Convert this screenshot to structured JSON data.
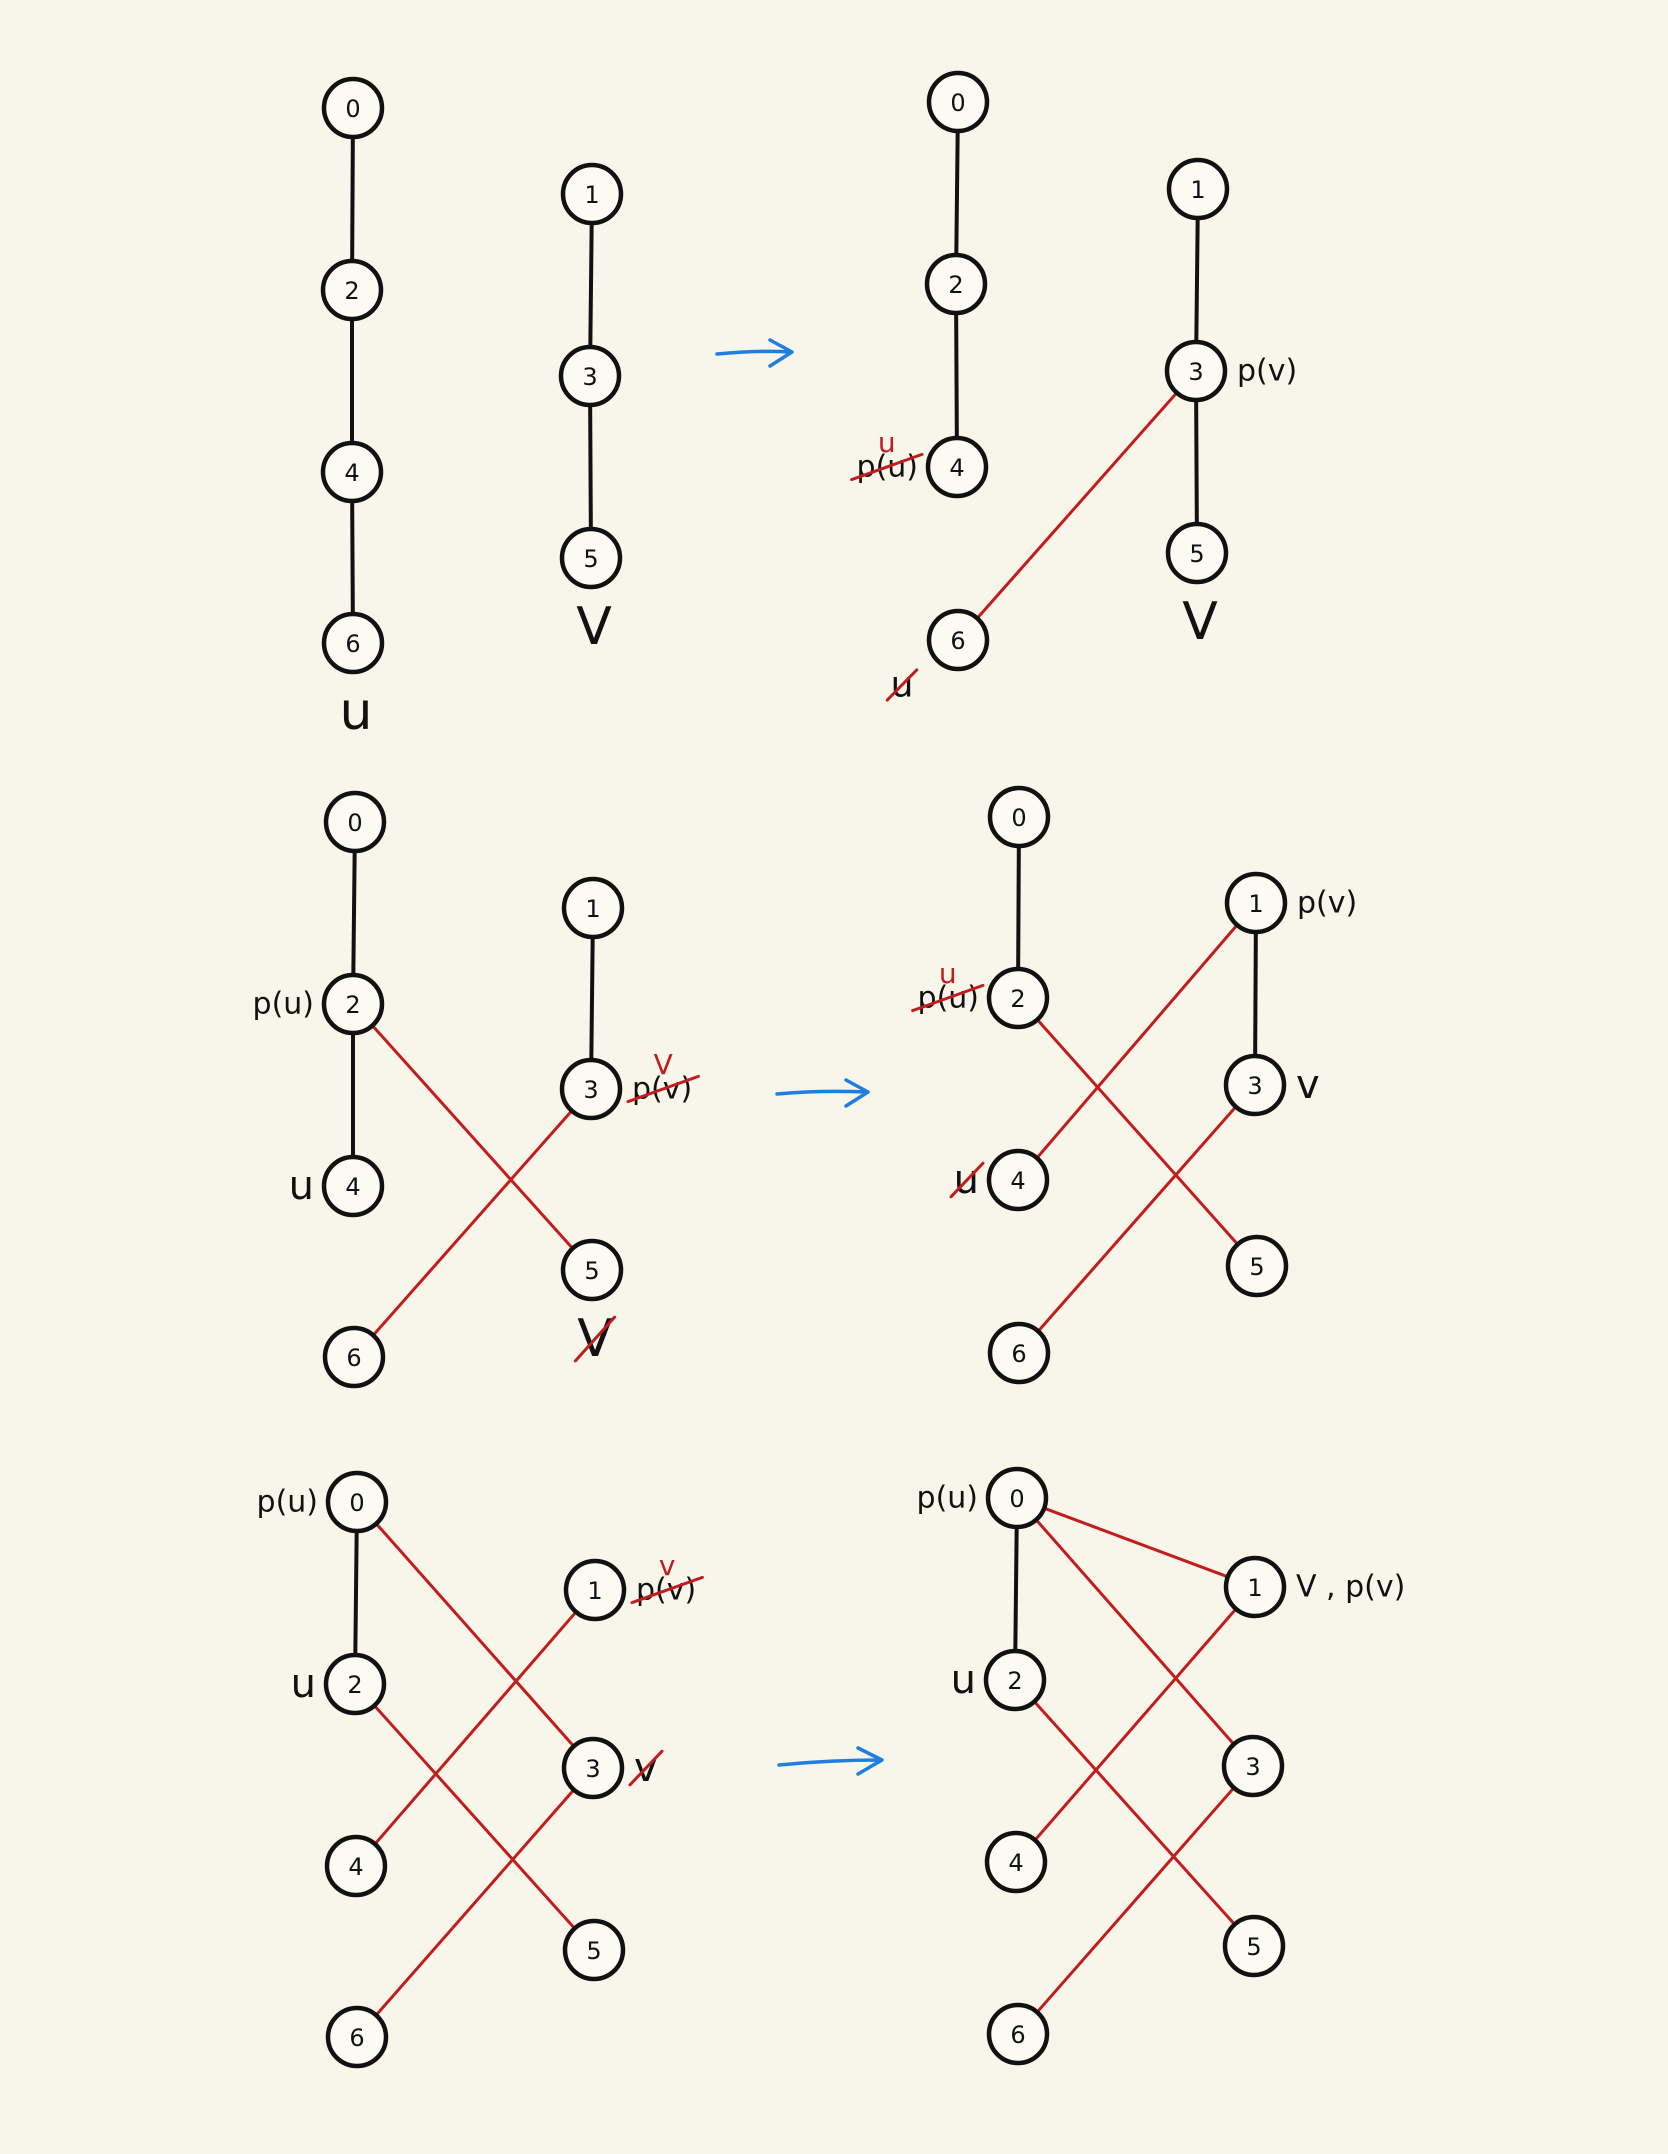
{
  "colors": {
    "background": "#f8f5ea",
    "tree_edge": "#111111",
    "link_edge": "#c21d1d",
    "transition_arrow": "#1f7fe0",
    "annotation_correction": "#c21d1d"
  },
  "node_labels": [
    "0",
    "1",
    "2",
    "3",
    "4",
    "5",
    "6"
  ],
  "panels": [
    {
      "id": "step1-before",
      "tree_edges": [
        [
          0,
          2
        ],
        [
          2,
          4
        ],
        [
          4,
          6
        ],
        [
          1,
          3
        ],
        [
          3,
          5
        ]
      ],
      "link_edges": [],
      "annotations": [
        {
          "text": "u",
          "anchor": 6,
          "side": "below",
          "struck": false
        },
        {
          "text": "V",
          "anchor": 5,
          "side": "below",
          "struck": false
        }
      ]
    },
    {
      "id": "step1-after",
      "tree_edges": [
        [
          0,
          2
        ],
        [
          2,
          4
        ],
        [
          1,
          3
        ],
        [
          3,
          5
        ]
      ],
      "link_edges": [
        [
          6,
          3
        ]
      ],
      "annotations": [
        {
          "text": "p(u)",
          "anchor": 4,
          "side": "left",
          "struck": true,
          "correction": "u"
        },
        {
          "text": "u",
          "anchor": 6,
          "side": "below-left",
          "struck": true
        },
        {
          "text": "p(v)",
          "anchor": 3,
          "side": "right",
          "struck": false
        },
        {
          "text": "V",
          "anchor": 5,
          "side": "below",
          "struck": false
        }
      ]
    },
    {
      "id": "step2-before",
      "tree_edges": [
        [
          0,
          2
        ],
        [
          2,
          4
        ],
        [
          1,
          3
        ]
      ],
      "link_edges": [
        [
          2,
          5
        ],
        [
          6,
          3
        ]
      ],
      "annotations": [
        {
          "text": "p(u)",
          "anchor": 2,
          "side": "left",
          "struck": false
        },
        {
          "text": "u",
          "anchor": 4,
          "side": "left",
          "struck": false
        },
        {
          "text": "p(v)",
          "anchor": 3,
          "side": "right",
          "struck": true,
          "correction": "V"
        },
        {
          "text": "V",
          "anchor": 5,
          "side": "below",
          "struck": true
        }
      ]
    },
    {
      "id": "step2-after",
      "tree_edges": [
        [
          0,
          2
        ],
        [
          1,
          3
        ]
      ],
      "link_edges": [
        [
          2,
          5
        ],
        [
          4,
          1
        ],
        [
          6,
          3
        ]
      ],
      "annotations": [
        {
          "text": "p(u)",
          "anchor": 2,
          "side": "left",
          "struck": true,
          "correction": "u"
        },
        {
          "text": "u",
          "anchor": 4,
          "side": "left",
          "struck": true
        },
        {
          "text": "p(v)",
          "anchor": 1,
          "side": "right",
          "struck": false
        },
        {
          "text": "v",
          "anchor": 3,
          "side": "right",
          "struck": false
        }
      ]
    },
    {
      "id": "step3-before",
      "tree_edges": [
        [
          0,
          2
        ]
      ],
      "link_edges": [
        [
          0,
          3
        ],
        [
          2,
          5
        ],
        [
          4,
          1
        ],
        [
          6,
          3
        ]
      ],
      "annotations": [
        {
          "text": "p(u)",
          "anchor": 0,
          "side": "left",
          "struck": false
        },
        {
          "text": "u",
          "anchor": 2,
          "side": "left",
          "struck": false
        },
        {
          "text": "p(v)",
          "anchor": 1,
          "side": "right",
          "struck": true,
          "correction": "v"
        },
        {
          "text": "v",
          "anchor": 3,
          "side": "right",
          "struck": true
        }
      ]
    },
    {
      "id": "step3-after",
      "tree_edges": [
        [
          0,
          2
        ]
      ],
      "link_edges": [
        [
          0,
          1
        ],
        [
          0,
          3
        ],
        [
          2,
          5
        ],
        [
          4,
          1
        ],
        [
          6,
          3
        ]
      ],
      "annotations": [
        {
          "text": "p(u)",
          "anchor": 0,
          "side": "left",
          "struck": false
        },
        {
          "text": "u",
          "anchor": 2,
          "side": "left",
          "struck": false
        },
        {
          "text": "V , p(v)",
          "anchor": 1,
          "side": "right",
          "struck": false
        }
      ]
    }
  ],
  "transitions": [
    {
      "from": "step1-before",
      "to": "step1-after"
    },
    {
      "from": "step2-before",
      "to": "step2-after"
    },
    {
      "from": "step3-before",
      "to": "step3-after"
    }
  ]
}
